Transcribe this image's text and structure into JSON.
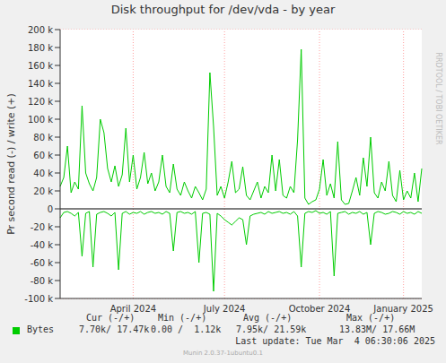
{
  "chart_data": {
    "type": "line",
    "title": "Disk throughput for /dev/vda - by year",
    "y_label": "Pr second read (-) / write (+)",
    "side_text": "RRDTOOL / TOBI OETIKER",
    "last_update": "Last update: Tue Mar  4 06:30:06 2025",
    "footer": "Munin 2.0.37-1ubuntu0.1",
    "stat_headers": [
      "Cur (-/+)",
      "Min (-/+)",
      "Avg (-/+)",
      "Max (-/+)"
    ],
    "grid": true,
    "categories": [
      null,
      null,
      null,
      null,
      null,
      null,
      null,
      null,
      null,
      null,
      null,
      null,
      null,
      null,
      null,
      null,
      null,
      null,
      null,
      null,
      "April 2024",
      null,
      null,
      null,
      null,
      null,
      null,
      null,
      null,
      null,
      null,
      null,
      null,
      null,
      null,
      null,
      null,
      null,
      null,
      null,
      null,
      null,
      null,
      null,
      null,
      "July 2024",
      null,
      null,
      null,
      null,
      null,
      null,
      null,
      null,
      null,
      null,
      null,
      null,
      null,
      null,
      null,
      null,
      null,
      null,
      null,
      null,
      null,
      null,
      null,
      null,
      null,
      "October 2024",
      null,
      null,
      null,
      null,
      null,
      null,
      null,
      null,
      null,
      null,
      null,
      null,
      null,
      null,
      null,
      null,
      null,
      null,
      null,
      null,
      null,
      null,
      "January 2025",
      null,
      null,
      null,
      null,
      null
    ],
    "ylim": [
      -100000,
      200000
    ],
    "yticks": [
      {
        "value": -100000,
        "label": "-100 k"
      },
      {
        "value": -80000,
        "label": "-80 k"
      },
      {
        "value": -60000,
        "label": "-60 k"
      },
      {
        "value": -40000,
        "label": "-40 k"
      },
      {
        "value": -20000,
        "label": "-20 k"
      },
      0,
      {
        "value": 20000,
        "label": "20 k"
      },
      {
        "value": 40000,
        "label": "40 k"
      },
      {
        "value": 60000,
        "label": "60 k"
      },
      {
        "value": 80000,
        "label": "80 k"
      },
      {
        "value": 100000,
        "label": "100 k"
      },
      {
        "value": 120000,
        "label": "120 k"
      },
      {
        "value": 140000,
        "label": "140 k"
      },
      {
        "value": 160000,
        "label": "160 k"
      },
      {
        "value": 180000,
        "label": "180 k"
      },
      {
        "value": 200000,
        "label": "200 k"
      }
    ],
    "series": [
      {
        "name": "Bytes",
        "color": "#00cc00",
        "stats": [
          "7.70k/ 17.47k",
          "0.00 /  1.12k",
          "7.95k/ 21.59k",
          "13.83M/ 17.66M"
        ],
        "values": [
          25000,
          35000,
          70000,
          18000,
          30000,
          22000,
          115000,
          40000,
          28000,
          20000,
          35000,
          100000,
          85000,
          45000,
          30000,
          48000,
          25000,
          38000,
          90000,
          30000,
          60000,
          22000,
          35000,
          63000,
          28000,
          40000,
          20000,
          30000,
          60000,
          25000,
          18000,
          50000,
          22000,
          15000,
          30000,
          20000,
          12000,
          25000,
          18000,
          10000,
          22000,
          152000,
          92000,
          15000,
          25000,
          12000,
          30000,
          53000,
          18000,
          22000,
          47000,
          15000,
          10000,
          20000,
          30000,
          12000,
          25000,
          18000,
          60000,
          20000,
          55000,
          15000,
          12000,
          25000,
          18000,
          77000,
          178000,
          12000,
          5000,
          8000,
          10000,
          22000,
          55000,
          15000,
          28000,
          12000,
          75000,
          10000,
          5000,
          6000,
          20000,
          35000,
          15000,
          57000,
          25000,
          80000,
          18000,
          12000,
          30000,
          20000,
          53000,
          15000,
          8000,
          43000,
          10000,
          20000,
          12000,
          40000,
          8000,
          45000
        ],
        "read_values": [
          -10000,
          -4000,
          -3000,
          -5000,
          -8000,
          -4000,
          -53000,
          -5000,
          -3000,
          -65000,
          -6000,
          -4000,
          -3000,
          -5000,
          -8000,
          -4000,
          -68000,
          -5000,
          -3000,
          -6000,
          -4000,
          -5000,
          -3000,
          -6000,
          -4000,
          -3000,
          -5000,
          -4000,
          -6000,
          -3000,
          -5000,
          -47000,
          -4000,
          -3000,
          -5000,
          -4000,
          -6000,
          -3000,
          -60000,
          -5000,
          -4000,
          -6000,
          -92000,
          -5000,
          -8000,
          -12000,
          -15000,
          -18000,
          -14000,
          -10000,
          -12000,
          -40000,
          -8000,
          -6000,
          -5000,
          -4000,
          -6000,
          -3000,
          -5000,
          -4000,
          -3000,
          -5000,
          -4000,
          -6000,
          -3000,
          -8000,
          -65000,
          -5000,
          -3000,
          -4000,
          -2000,
          -5000,
          -4000,
          -6000,
          -3000,
          -75000,
          -5000,
          -4000,
          -3000,
          -6000,
          -4000,
          -5000,
          -3000,
          -6000,
          -4000,
          -40000,
          -5000,
          -3000,
          -4000,
          -6000,
          -5000,
          -3000,
          -4000,
          -6000,
          -3000,
          -5000,
          -4000,
          -6000,
          -3000,
          -5000
        ]
      }
    ]
  }
}
